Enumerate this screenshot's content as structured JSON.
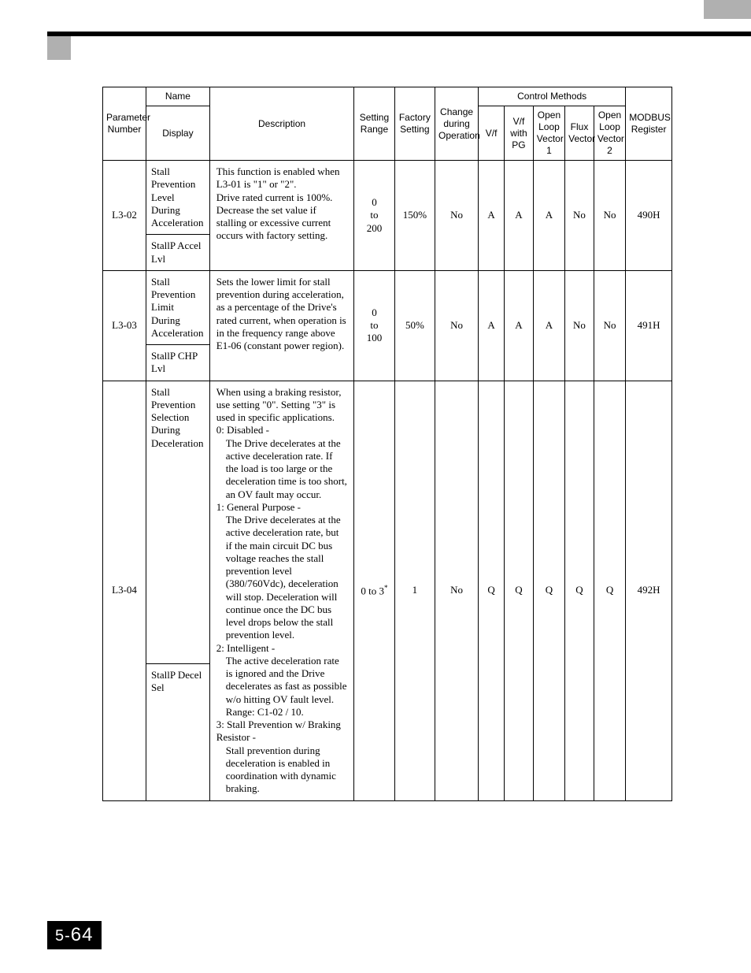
{
  "page_number_prefix": "5-",
  "page_number": "64",
  "header": {
    "param_no": "Parameter Number",
    "name": "Name",
    "display": "Display",
    "description": "Description",
    "setting_range": "Setting Range",
    "factory_setting": "Factory Setting",
    "change_during_op": "Change during Operation",
    "control_methods": "Control Methods",
    "cm_vf": "V/f",
    "cm_vf_pg": "V/f with PG",
    "cm_olv1": "Open Loop Vector 1",
    "cm_flux": "Flux Vector",
    "cm_olv2": "Open Loop Vector 2",
    "modbus": "MODBUS Register"
  },
  "rows": [
    {
      "param": "L3-02",
      "name": "Stall Prevention Level During Acceleration",
      "display": "StallP Accel Lvl",
      "description": "This function is enabled when L3-01 is \"1\" or \"2\".\nDrive rated current is 100%.\nDecrease the set value if stalling or excessive current occurs with factory setting.",
      "setting_range": "0 to 200",
      "factory_setting": "150%",
      "change": "No",
      "cm": [
        "A",
        "A",
        "A",
        "No",
        "No"
      ],
      "modbus": "490H"
    },
    {
      "param": "L3-03",
      "name": "Stall Prevention Limit During Acceleration",
      "display": "StallP CHP Lvl",
      "description": "Sets the lower limit for stall prevention during acceleration, as a percentage of the Drive's rated current, when operation is in the frequency range above E1-06 (constant power region).",
      "setting_range": "0 to 100",
      "factory_setting": "50%",
      "change": "No",
      "cm": [
        "A",
        "A",
        "A",
        "No",
        "No"
      ],
      "modbus": "491H"
    },
    {
      "param": "L3-04",
      "name": "Stall Prevention Selection During Deceleration",
      "display": "StallP Decel Sel",
      "description_intro": "When using a braking resistor, use setting \"0\". Setting \"3\" is used in specific applications.",
      "description_items": [
        {
          "lead": "0: Disabled - ",
          "body": "The Drive decelerates at the active deceleration rate. If the load is too large or the deceleration time is too short, an OV fault may occur."
        },
        {
          "lead": "1: General Purpose - ",
          "body": "The Drive decelerates at the active deceleration rate, but if the main circuit DC bus voltage reaches the stall prevention level (380/760Vdc), deceleration will stop. Deceleration will continue once the DC bus level drops below the stall prevention level."
        },
        {
          "lead": "2: Intelligent - ",
          "body": "The active deceleration rate is ignored and the Drive decelerates as fast as possible w/o hitting OV fault level. Range: C1-02 / 10."
        },
        {
          "lead": "3: Stall Prevention w/ Braking Resistor - ",
          "body": "Stall prevention during deceleration is enabled in coordination with dynamic braking."
        }
      ],
      "setting_range_html": "0 to 3<sup>*</sup>",
      "factory_setting": "1",
      "change": "No",
      "cm": [
        "Q",
        "Q",
        "Q",
        "Q",
        "Q"
      ],
      "modbus": "492H"
    }
  ]
}
